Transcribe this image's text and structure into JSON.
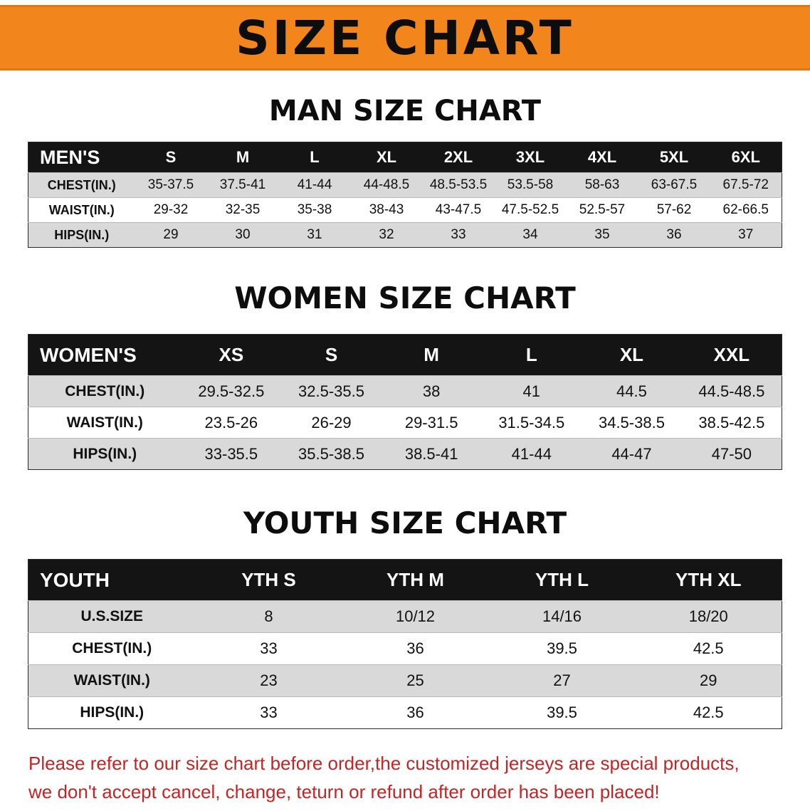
{
  "banner": {
    "title": "SIZE CHART"
  },
  "colors": {
    "banner_bg": "#f2861d",
    "table_header_bg": "#141414",
    "row_alt": "#d9d9d9",
    "footer_text": "#c52424"
  },
  "men": {
    "heading": "MAN SIZE CHART",
    "label": "MEN'S",
    "sizes": [
      "S",
      "M",
      "L",
      "XL",
      "2XL",
      "3XL",
      "4XL",
      "5XL",
      "6XL"
    ],
    "rows": [
      {
        "label": "CHEST(IN.)",
        "values": [
          "35-37.5",
          "37.5-41",
          "41-44",
          "44-48.5",
          "48.5-53.5",
          "53.5-58",
          "58-63",
          "63-67.5",
          "67.5-72"
        ]
      },
      {
        "label": "WAIST(IN.)",
        "values": [
          "29-32",
          "32-35",
          "35-38",
          "38-43",
          "43-47.5",
          "47.5-52.5",
          "52.5-57",
          "57-62",
          "62-66.5"
        ]
      },
      {
        "label": "HIPS(IN.)",
        "values": [
          "29",
          "30",
          "31",
          "32",
          "33",
          "34",
          "35",
          "36",
          "37"
        ]
      }
    ]
  },
  "women": {
    "heading": "WOMEN SIZE CHART",
    "label": "WOMEN'S",
    "sizes": [
      "XS",
      "S",
      "M",
      "L",
      "XL",
      "XXL"
    ],
    "rows": [
      {
        "label": "CHEST(IN.)",
        "values": [
          "29.5-32.5",
          "32.5-35.5",
          "38",
          "41",
          "44.5",
          "44.5-48.5"
        ]
      },
      {
        "label": "WAIST(IN.)",
        "values": [
          "23.5-26",
          "26-29",
          "29-31.5",
          "31.5-34.5",
          "34.5-38.5",
          "38.5-42.5"
        ]
      },
      {
        "label": "HIPS(IN.)",
        "values": [
          "33-35.5",
          "35.5-38.5",
          "38.5-41",
          "41-44",
          "44-47",
          "47-50"
        ]
      }
    ]
  },
  "youth": {
    "heading": "YOUTH SIZE CHART",
    "label": "YOUTH",
    "sizes": [
      "YTH S",
      "YTH M",
      "YTH L",
      "YTH XL"
    ],
    "rows": [
      {
        "label": "U.S.SIZE",
        "values": [
          "8",
          "10/12",
          "14/16",
          "18/20"
        ]
      },
      {
        "label": "CHEST(IN.)",
        "values": [
          "33",
          "36",
          "39.5",
          "42.5"
        ]
      },
      {
        "label": "WAIST(IN.)",
        "values": [
          "23",
          "25",
          "27",
          "29"
        ]
      },
      {
        "label": "HIPS(IN.)",
        "values": [
          "33",
          "36",
          "39.5",
          "42.5"
        ]
      }
    ]
  },
  "footer": {
    "line1": "Please refer to our size chart before order,the customized jerseys are special products,",
    "line2": "we don't accept cancel, change, teturn or refund after order has been placed!"
  }
}
